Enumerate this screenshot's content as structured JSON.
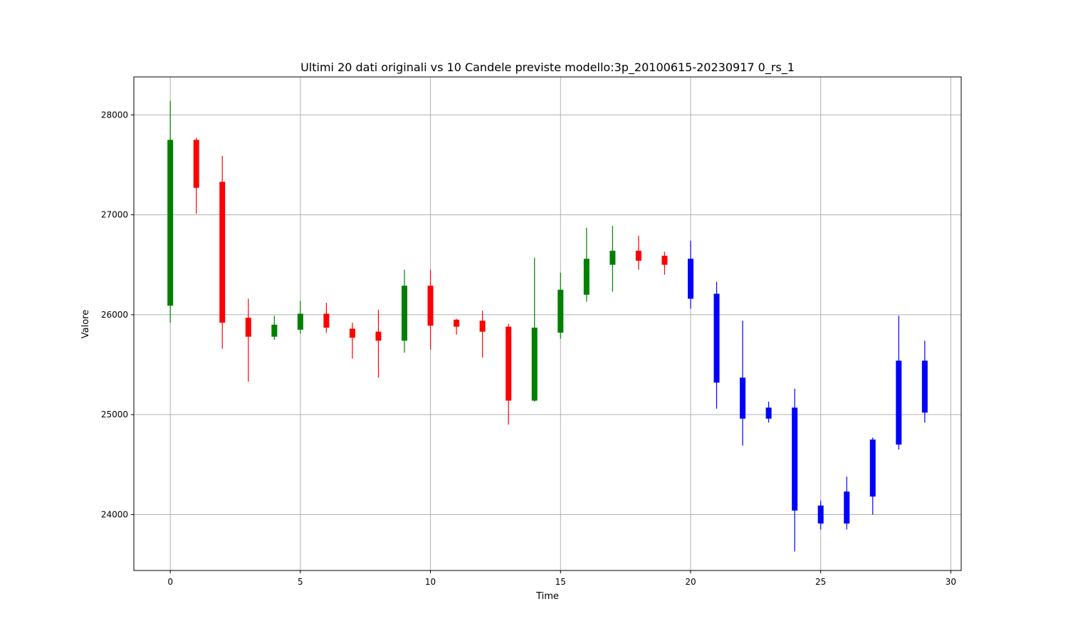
{
  "chart_data": {
    "type": "candlestick",
    "title": "Ultimi 20 dati originali vs 10 Candele previste modello:3p_20100615-20230917 0_rs_1",
    "xlabel": "Time",
    "ylabel": "Valore",
    "xlim": [
      -1.4,
      30.4
    ],
    "ylim": [
      23440,
      28380
    ],
    "xticks": [
      0,
      5,
      10,
      15,
      20,
      25,
      30
    ],
    "yticks": [
      24000,
      25000,
      26000,
      27000,
      28000
    ],
    "grid": true,
    "colors": {
      "up": "#008000",
      "down": "#ff0000",
      "forecast": "#0000ff",
      "grid": "#b0b0b0"
    },
    "candles": [
      {
        "x": 0,
        "open": 26090,
        "high": 28140,
        "low": 25920,
        "close": 27750,
        "kind": "up"
      },
      {
        "x": 1,
        "open": 27750,
        "high": 27770,
        "low": 27010,
        "close": 27270,
        "kind": "down"
      },
      {
        "x": 2,
        "open": 27330,
        "high": 27590,
        "low": 25660,
        "close": 25920,
        "kind": "down"
      },
      {
        "x": 3,
        "open": 25970,
        "high": 26160,
        "low": 25330,
        "close": 25780,
        "kind": "down"
      },
      {
        "x": 4,
        "open": 25780,
        "high": 25990,
        "low": 25750,
        "close": 25900,
        "kind": "up"
      },
      {
        "x": 5,
        "open": 25850,
        "high": 26140,
        "low": 25810,
        "close": 26010,
        "kind": "up"
      },
      {
        "x": 6,
        "open": 26010,
        "high": 26120,
        "low": 25820,
        "close": 25870,
        "kind": "down"
      },
      {
        "x": 7,
        "open": 25860,
        "high": 25920,
        "low": 25560,
        "close": 25770,
        "kind": "down"
      },
      {
        "x": 8,
        "open": 25830,
        "high": 26050,
        "low": 25370,
        "close": 25740,
        "kind": "down"
      },
      {
        "x": 9,
        "open": 25740,
        "high": 26450,
        "low": 25620,
        "close": 26290,
        "kind": "up"
      },
      {
        "x": 10,
        "open": 26290,
        "high": 26450,
        "low": 25650,
        "close": 25890,
        "kind": "down"
      },
      {
        "x": 11,
        "open": 25950,
        "high": 25960,
        "low": 25800,
        "close": 25880,
        "kind": "down"
      },
      {
        "x": 12,
        "open": 25940,
        "high": 26040,
        "low": 25570,
        "close": 25830,
        "kind": "down"
      },
      {
        "x": 13,
        "open": 25880,
        "high": 25910,
        "low": 24900,
        "close": 25140,
        "kind": "down"
      },
      {
        "x": 14,
        "open": 25140,
        "high": 26570,
        "low": 25130,
        "close": 25870,
        "kind": "up"
      },
      {
        "x": 15,
        "open": 25820,
        "high": 26420,
        "low": 25760,
        "close": 26250,
        "kind": "up"
      },
      {
        "x": 16,
        "open": 26200,
        "high": 26870,
        "low": 26130,
        "close": 26560,
        "kind": "up"
      },
      {
        "x": 17,
        "open": 26500,
        "high": 26890,
        "low": 26230,
        "close": 26640,
        "kind": "up"
      },
      {
        "x": 18,
        "open": 26640,
        "high": 26790,
        "low": 26450,
        "close": 26540,
        "kind": "down"
      },
      {
        "x": 19,
        "open": 26590,
        "high": 26630,
        "low": 26400,
        "close": 26500,
        "kind": "down"
      },
      {
        "x": 20,
        "open": 26560,
        "high": 26740,
        "low": 26060,
        "close": 26160,
        "kind": "forecast"
      },
      {
        "x": 21,
        "open": 26210,
        "high": 26330,
        "low": 25060,
        "close": 25320,
        "kind": "forecast"
      },
      {
        "x": 22,
        "open": 25370,
        "high": 25940,
        "low": 24690,
        "close": 24960,
        "kind": "forecast"
      },
      {
        "x": 23,
        "open": 25070,
        "high": 25130,
        "low": 24920,
        "close": 24960,
        "kind": "forecast"
      },
      {
        "x": 24,
        "open": 25070,
        "high": 25260,
        "low": 23630,
        "close": 24040,
        "kind": "forecast"
      },
      {
        "x": 25,
        "open": 24090,
        "high": 24140,
        "low": 23850,
        "close": 23910,
        "kind": "forecast"
      },
      {
        "x": 26,
        "open": 24230,
        "high": 24380,
        "low": 23850,
        "close": 23910,
        "kind": "forecast"
      },
      {
        "x": 27,
        "open": 24750,
        "high": 24770,
        "low": 24000,
        "close": 24180,
        "kind": "forecast"
      },
      {
        "x": 28,
        "open": 25540,
        "high": 25990,
        "low": 24650,
        "close": 24700,
        "kind": "forecast"
      },
      {
        "x": 29,
        "open": 25540,
        "high": 25740,
        "low": 24920,
        "close": 25020,
        "kind": "forecast"
      }
    ]
  }
}
